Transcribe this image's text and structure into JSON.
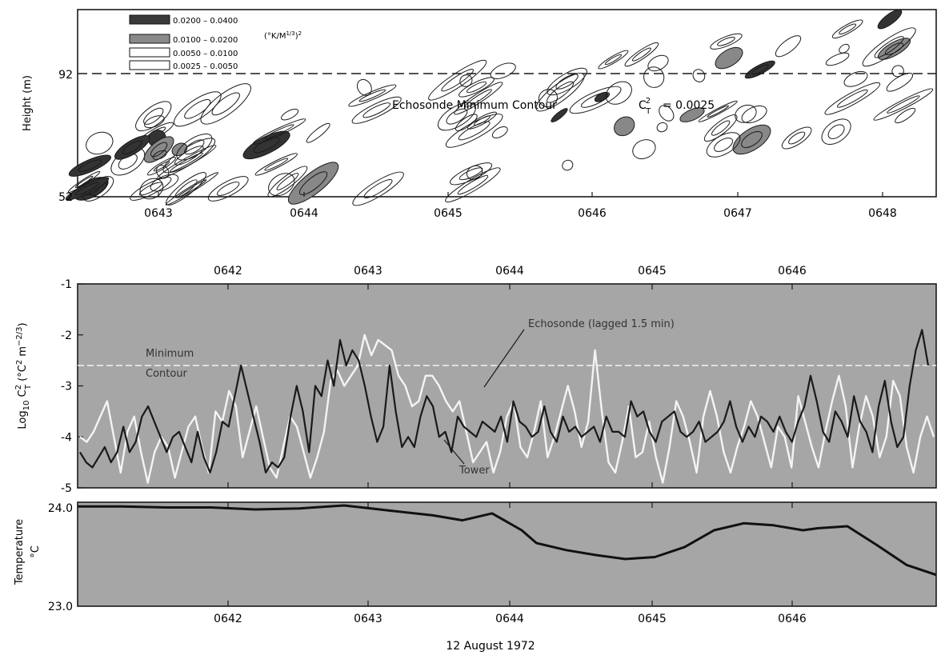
{
  "chart_data": [
    {
      "type": "heatmap",
      "ylabel": "Height (m)",
      "yticks": [
        "92",
        "52"
      ],
      "xticks": [
        "0643",
        "0644",
        "0645",
        "0646",
        "0647",
        "0648"
      ],
      "legend": {
        "ranges": [
          "0.0200 – 0.0400",
          "0.0100 – 0.0200",
          "0.0050 – 0.0100",
          "0.0025 – 0.0050"
        ],
        "units": "(°K/M^1/3)^2"
      },
      "reference_line_height": 92,
      "annotation": "Echosonde Minimum Contour",
      "annotation_eq": "= 0.0025"
    },
    {
      "type": "line",
      "ylabel": "Log10 CT2 (°C² m^-2/3)",
      "ylim": [
        -5,
        -1
      ],
      "yticks": [
        "-1",
        "-2",
        "-3",
        "-4",
        "-5"
      ],
      "xticks": [
        "0642",
        "0643",
        "0644",
        "0645",
        "0646"
      ],
      "xlim": [
        0,
        5.8
      ],
      "min_contour_level": -2.6,
      "annotations": [
        "Minimum",
        "Contour",
        "Echosonde (lagged 1.5 min)",
        "Tower"
      ],
      "series": [
        {
          "name": "Tower",
          "color": "#1a1a1a",
          "values": [
            -4.3,
            -4.5,
            -4.6,
            -4.4,
            -4.2,
            -4.5,
            -4.3,
            -3.8,
            -4.3,
            -4.1,
            -3.6,
            -3.4,
            -3.7,
            -4.0,
            -4.3,
            -4.0,
            -3.9,
            -4.2,
            -4.5,
            -3.9,
            -4.4,
            -4.7,
            -4.3,
            -3.7,
            -3.8,
            -3.2,
            -2.6,
            -3.1,
            -3.6,
            -4.1,
            -4.7,
            -4.5,
            -4.6,
            -4.4,
            -3.6,
            -3.0,
            -3.5,
            -4.3,
            -3.0,
            -3.2,
            -2.5,
            -3.0,
            -2.1,
            -2.6,
            -2.3,
            -2.5,
            -3.0,
            -3.6,
            -4.1,
            -3.8,
            -2.6,
            -3.5,
            -4.2,
            -4.0,
            -4.2,
            -3.6,
            -3.2,
            -3.4,
            -4.0,
            -3.9,
            -4.3,
            -3.6,
            -3.8,
            -3.9,
            -4.0,
            -3.7,
            -3.8,
            -3.9,
            -3.6,
            -4.1,
            -3.3,
            -3.7,
            -3.8,
            -4.0,
            -3.9,
            -3.4,
            -3.9,
            -4.1,
            -3.6,
            -3.9,
            -3.8,
            -4.0,
            -3.9,
            -3.8,
            -4.1,
            -3.6,
            -3.9,
            -3.9,
            -4.0,
            -3.3,
            -3.6,
            -3.5,
            -3.9,
            -4.1,
            -3.7,
            -3.6,
            -3.5,
            -3.9,
            -4.0,
            -3.9,
            -3.7,
            -4.1,
            -4.0,
            -3.9,
            -3.7,
            -3.3,
            -3.8,
            -4.1,
            -3.8,
            -4.0,
            -3.6,
            -3.7,
            -3.9,
            -3.6,
            -3.9,
            -4.1,
            -3.7,
            -3.4,
            -2.8,
            -3.3,
            -3.9,
            -4.1,
            -3.5,
            -3.7,
            -4.0,
            -3.2,
            -3.7,
            -3.9,
            -4.3,
            -3.4,
            -2.9,
            -3.7,
            -4.2,
            -4.0,
            -3.0,
            -2.3,
            -1.9,
            -2.6
          ]
        },
        {
          "name": "Echosonde (lagged 1.5 min)",
          "color": "#f4f4f4",
          "values": [
            -4.0,
            -4.1,
            -3.9,
            -3.6,
            -3.3,
            -4.0,
            -4.7,
            -3.9,
            -3.6,
            -4.3,
            -4.9,
            -4.3,
            -4.0,
            -4.2,
            -4.8,
            -4.3,
            -3.8,
            -3.6,
            -4.2,
            -4.7,
            -3.5,
            -3.7,
            -3.1,
            -3.4,
            -4.4,
            -3.9,
            -3.4,
            -4.0,
            -4.6,
            -4.8,
            -4.2,
            -3.6,
            -3.8,
            -4.3,
            -4.8,
            -4.4,
            -3.9,
            -2.9,
            -2.7,
            -3.0,
            -2.8,
            -2.6,
            -2.0,
            -2.4,
            -2.1,
            -2.2,
            -2.3,
            -2.8,
            -3.0,
            -3.4,
            -3.3,
            -2.8,
            -2.8,
            -3.0,
            -3.3,
            -3.5,
            -3.3,
            -3.9,
            -4.5,
            -4.3,
            -4.1,
            -4.7,
            -4.3,
            -3.6,
            -3.3,
            -4.2,
            -4.4,
            -3.9,
            -3.3,
            -4.4,
            -4.0,
            -3.5,
            -3.0,
            -3.5,
            -4.2,
            -3.7,
            -2.3,
            -3.5,
            -4.5,
            -4.7,
            -4.1,
            -3.4,
            -4.4,
            -4.3,
            -3.7,
            -4.4,
            -4.9,
            -4.2,
            -3.3,
            -3.6,
            -4.1,
            -4.7,
            -3.6,
            -3.1,
            -3.6,
            -4.3,
            -4.7,
            -4.2,
            -3.8,
            -3.3,
            -3.6,
            -4.1,
            -4.6,
            -3.8,
            -4.0,
            -4.6,
            -3.2,
            -3.7,
            -4.2,
            -4.6,
            -3.9,
            -3.3,
            -2.8,
            -3.4,
            -4.6,
            -3.8,
            -3.2,
            -3.6,
            -4.4,
            -4.0,
            -2.9,
            -3.2,
            -4.2,
            -4.7,
            -4.0,
            -3.6,
            -4.0
          ]
        }
      ]
    },
    {
      "type": "line",
      "ylabel": "Temperature °C",
      "ylim": [
        23.0,
        24.0
      ],
      "yticks": [
        "24.0",
        "23.0"
      ],
      "xticks": [
        "0642",
        "0643",
        "0644",
        "0645",
        "0646"
      ],
      "xlim": [
        0,
        5.8
      ],
      "series": [
        {
          "name": "",
          "color": "#111111",
          "x": [
            0,
            0.3,
            0.6,
            0.9,
            1.2,
            1.5,
            1.8,
            2.1,
            2.4,
            2.6,
            2.8,
            3.0,
            3.1,
            3.3,
            3.5,
            3.7,
            3.9,
            4.1,
            4.3,
            4.5,
            4.7,
            4.9,
            5.0,
            5.2,
            5.4,
            5.6,
            5.8
          ],
          "values": [
            23.99,
            23.99,
            23.98,
            23.98,
            23.96,
            23.97,
            24.0,
            23.95,
            23.9,
            23.85,
            23.92,
            23.75,
            23.62,
            23.55,
            23.5,
            23.46,
            23.48,
            23.58,
            23.75,
            23.82,
            23.8,
            23.75,
            23.77,
            23.79,
            23.6,
            23.4,
            23.3
          ]
        }
      ]
    }
  ],
  "xlabel": "12 August 1972"
}
